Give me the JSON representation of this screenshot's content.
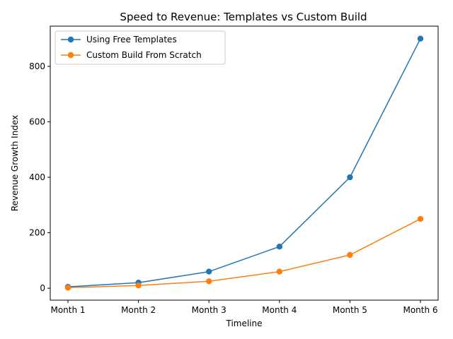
{
  "chart_data": {
    "type": "line",
    "title": "Speed to Revenue: Templates vs Custom Build",
    "xlabel": "Timeline",
    "ylabel": "Revenue Growth Index",
    "categories": [
      "Month 1",
      "Month 2",
      "Month 3",
      "Month 4",
      "Month 5",
      "Month 6"
    ],
    "series": [
      {
        "name": "Using Free Templates",
        "color": "#1f77b4",
        "values": [
          5,
          20,
          60,
          150,
          400,
          900
        ]
      },
      {
        "name": "Custom Build From Scratch",
        "color": "#ff7f0e",
        "values": [
          2,
          10,
          25,
          60,
          120,
          250
        ]
      }
    ],
    "yticks": [
      0,
      200,
      400,
      600,
      800
    ],
    "ylim": [
      -43,
      945
    ],
    "grid": false,
    "legend": "top-left"
  }
}
